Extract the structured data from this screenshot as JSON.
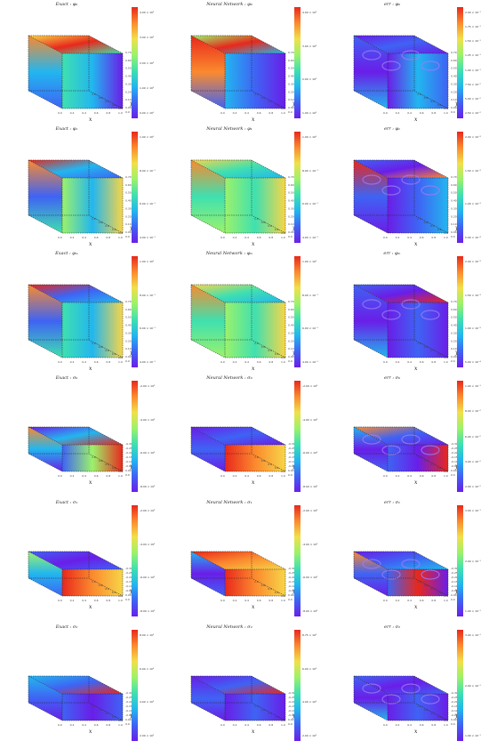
{
  "colormap": [
    "#6a1ee8",
    "#3f63f4",
    "#22b6ef",
    "#3fe0b0",
    "#9cf26b",
    "#f1e04a",
    "#fb8a2e",
    "#e8281c"
  ],
  "chart_data": [
    {
      "type": "heatmap",
      "title": "Exact : φ₀",
      "xlabel": "x",
      "ylabel": "y",
      "zlabel": "z",
      "x_ticks": [
        "0.0",
        "0.2",
        "0.4",
        "0.6",
        "0.8",
        "1.0"
      ],
      "y_ticks": [
        "0.0",
        "0.2",
        "0.4",
        "0.6",
        "0.8",
        "1.0"
      ],
      "z_ticks": [
        "0.00",
        "0.10",
        "0.20",
        "0.30",
        "0.40",
        "0.50",
        "0.60",
        "0.70"
      ],
      "colorbar_ticks": [
        "4.00 × 10²",
        "3.00 × 10²",
        "2.00 × 10²",
        "1.00 × 10²",
        "0.00 × 10⁰"
      ]
    },
    {
      "type": "heatmap",
      "title": "Neural Network : φ₀",
      "xlabel": "x",
      "ylabel": "y",
      "zlabel": "z",
      "x_ticks": [
        "0.0",
        "0.2",
        "0.4",
        "0.6",
        "0.8",
        "1.0"
      ],
      "y_ticks": [
        "0.0",
        "0.2",
        "0.4",
        "0.6",
        "0.8",
        "1.0"
      ],
      "z_ticks": [
        "0.00",
        "0.10",
        "0.20",
        "0.30",
        "0.40",
        "0.50",
        "0.60",
        "0.70"
      ],
      "colorbar_ticks": [
        "4.00 × 10²",
        "3.00 × 10²",
        "2.00 × 10²",
        "1.00 × 10²"
      ]
    },
    {
      "type": "heatmap",
      "title": "err : φ₀",
      "xlabel": "x",
      "ylabel": "y",
      "zlabel": "z",
      "x_ticks": [
        "0.0",
        "0.2",
        "0.4",
        "0.6",
        "0.8",
        "1.0"
      ],
      "y_ticks": [
        "0.0",
        "0.2",
        "0.4",
        "0.6",
        "0.8",
        "1.0"
      ],
      "z_ticks": [
        "0.00",
        "0.10",
        "0.20",
        "0.30",
        "0.40",
        "0.50",
        "0.60",
        "0.70"
      ],
      "colorbar_ticks": [
        "2.00 × 10⁻¹",
        "1.75 × 10⁻¹",
        "1.50 × 10⁻¹",
        "1.25 × 10⁻¹",
        "1.00 × 10⁻¹",
        "7.50 × 10⁻²",
        "5.00 × 10⁻²",
        "2.50 × 10⁻²"
      ]
    },
    {
      "type": "heatmap",
      "title": "Exact : φ₁",
      "xlabel": "x",
      "ylabel": "y",
      "zlabel": "z",
      "x_ticks": [
        "0.0",
        "0.2",
        "0.4",
        "0.6",
        "0.8",
        "1.0"
      ],
      "y_ticks": [
        "0.0",
        "0.2",
        "0.4",
        "0.6",
        "0.8",
        "1.0"
      ],
      "z_ticks": [
        "0.00",
        "0.10",
        "0.20",
        "0.30",
        "0.40",
        "0.50",
        "0.60",
        "0.70"
      ],
      "colorbar_ticks": [
        "1.00 × 10⁰",
        "8.00 × 10⁻¹",
        "6.00 × 10⁻¹",
        "4.00 × 10⁻¹"
      ]
    },
    {
      "type": "heatmap",
      "title": "Neural Network : φ₁",
      "xlabel": "x",
      "ylabel": "y",
      "zlabel": "z",
      "x_ticks": [
        "0.0",
        "0.2",
        "0.4",
        "0.6",
        "0.8",
        "1.0"
      ],
      "y_ticks": [
        "0.0",
        "0.2",
        "0.4",
        "0.6",
        "0.8",
        "1.0"
      ],
      "z_ticks": [
        "0.00",
        "0.10",
        "0.20",
        "0.30",
        "0.40",
        "0.50",
        "0.60",
        "0.70"
      ],
      "colorbar_ticks": [
        "1.00 × 10⁰",
        "8.00 × 10⁻¹",
        "6.00 × 10⁻¹",
        "4.00 × 10⁻¹"
      ]
    },
    {
      "type": "heatmap",
      "title": "err : φ₁",
      "xlabel": "x",
      "ylabel": "y",
      "zlabel": "z",
      "x_ticks": [
        "0.0",
        "0.2",
        "0.4",
        "0.6",
        "0.8",
        "1.0"
      ],
      "y_ticks": [
        "0.0",
        "0.2",
        "0.4",
        "0.6",
        "0.8",
        "1.0"
      ],
      "z_ticks": [
        "0.00",
        "0.10",
        "0.20",
        "0.30",
        "0.40",
        "0.50",
        "0.60",
        "0.70"
      ],
      "colorbar_ticks": [
        "2.00 × 10⁻³",
        "1.50 × 10⁻³",
        "1.00 × 10⁻³",
        "5.00 × 10⁻⁴"
      ]
    },
    {
      "type": "heatmap",
      "title": "Exact : φₘ",
      "xlabel": "x",
      "ylabel": "y",
      "zlabel": "z",
      "x_ticks": [
        "0.0",
        "0.2",
        "0.4",
        "0.6",
        "0.8",
        "1.0"
      ],
      "y_ticks": [
        "0.0",
        "0.2",
        "0.4",
        "0.6",
        "0.8",
        "1.0"
      ],
      "z_ticks": [
        "0.00",
        "0.10",
        "0.20",
        "0.30",
        "0.40",
        "0.50",
        "0.60",
        "0.70"
      ],
      "colorbar_ticks": [
        "1.00 × 10⁰",
        "8.00 × 10⁻¹",
        "6.00 × 10⁻¹",
        "4.00 × 10⁻¹"
      ]
    },
    {
      "type": "heatmap",
      "title": "Neural Network : φₘ",
      "xlabel": "x",
      "ylabel": "y",
      "zlabel": "z",
      "x_ticks": [
        "0.0",
        "0.2",
        "0.4",
        "0.6",
        "0.8",
        "1.0"
      ],
      "y_ticks": [
        "0.0",
        "0.2",
        "0.4",
        "0.6",
        "0.8",
        "1.0"
      ],
      "z_ticks": [
        "0.00",
        "0.10",
        "0.20",
        "0.30",
        "0.40",
        "0.50",
        "0.60",
        "0.70"
      ],
      "colorbar_ticks": [
        "1.00 × 10⁰",
        "8.00 × 10⁻¹",
        "6.00 × 10⁻¹",
        "4.00 × 10⁻¹"
      ]
    },
    {
      "type": "heatmap",
      "title": "err : φₘ",
      "xlabel": "x",
      "ylabel": "y",
      "zlabel": "z",
      "x_ticks": [
        "0.0",
        "0.2",
        "0.4",
        "0.6",
        "0.8",
        "1.0"
      ],
      "y_ticks": [
        "0.0",
        "0.2",
        "0.4",
        "0.6",
        "0.8",
        "1.0"
      ],
      "z_ticks": [
        "0.00",
        "0.10",
        "0.20",
        "0.30",
        "0.40",
        "0.50",
        "0.60",
        "0.70"
      ],
      "colorbar_ticks": [
        "2.00 × 10⁻³",
        "1.50 × 10⁻³",
        "1.00 × 10⁻³",
        "5.00 × 10⁻⁴"
      ]
    },
    {
      "type": "heatmap",
      "title": "Exact : σ₀",
      "xlabel": "x",
      "ylabel": "y",
      "zlabel": "z",
      "x_ticks": [
        "0.0",
        "0.2",
        "0.4",
        "0.6",
        "0.8",
        "1.0"
      ],
      "y_ticks": [
        "0.0",
        "0.2",
        "0.4",
        "0.6",
        "0.8",
        "1.0"
      ],
      "z_ticks": [
        "0.00",
        "-0.05",
        "-0.10",
        "-0.15",
        "-0.20",
        "-0.25",
        "-0.30"
      ],
      "colorbar_ticks": [
        "-2.00 × 10²",
        "-4.00 × 10²",
        "-6.00 × 10²",
        "-8.00 × 10²"
      ]
    },
    {
      "type": "heatmap",
      "title": "Neural Network : σ₀",
      "xlabel": "x",
      "ylabel": "y",
      "zlabel": "z",
      "x_ticks": [
        "0.0",
        "0.2",
        "0.4",
        "0.6",
        "0.8",
        "1.0"
      ],
      "y_ticks": [
        "0.0",
        "0.2",
        "0.4",
        "0.6",
        "0.8",
        "1.0"
      ],
      "z_ticks": [
        "0.00",
        "-0.05",
        "-0.10",
        "-0.15",
        "-0.20",
        "-0.25",
        "-0.30"
      ],
      "colorbar_ticks": [
        "-2.00 × 10²",
        "-4.00 × 10²",
        "-6.00 × 10²",
        "-8.00 × 10²"
      ]
    },
    {
      "type": "heatmap",
      "title": "err : σ₀",
      "xlabel": "x",
      "ylabel": "y",
      "zlabel": "z",
      "x_ticks": [
        "0.0",
        "0.2",
        "0.4",
        "0.6",
        "0.8",
        "1.0"
      ],
      "y_ticks": [
        "0.0",
        "0.2",
        "0.4",
        "0.6",
        "0.8",
        "1.0"
      ],
      "z_ticks": [
        "0.00",
        "-0.05",
        "-0.10",
        "-0.15",
        "-0.20",
        "-0.25",
        "-0.30"
      ],
      "colorbar_ticks": [
        "1.00 × 10⁻¹",
        "8.00 × 10⁻²",
        "6.00 × 10⁻²",
        "4.00 × 10⁻²",
        "2.00 × 10⁻²"
      ]
    },
    {
      "type": "heatmap",
      "title": "Exact : σ₁",
      "xlabel": "x",
      "ylabel": "y",
      "zlabel": "z",
      "x_ticks": [
        "0.0",
        "0.2",
        "0.4",
        "0.6",
        "0.8",
        "1.0"
      ],
      "y_ticks": [
        "0.0",
        "0.2",
        "0.4",
        "0.6",
        "0.8",
        "1.0"
      ],
      "z_ticks": [
        "0.00",
        "-0.05",
        "-0.10",
        "-0.15",
        "-0.20",
        "-0.25",
        "-0.30"
      ],
      "colorbar_ticks": [
        "-2.00 × 10²",
        "-4.00 × 10²",
        "-6.00 × 10²",
        "-8.00 × 10²"
      ]
    },
    {
      "type": "heatmap",
      "title": "Neural Network : σ₁",
      "xlabel": "x",
      "ylabel": "y",
      "zlabel": "z",
      "x_ticks": [
        "0.0",
        "0.2",
        "0.4",
        "0.6",
        "0.8",
        "1.0"
      ],
      "y_ticks": [
        "0.0",
        "0.2",
        "0.4",
        "0.6",
        "0.8",
        "1.0"
      ],
      "z_ticks": [
        "0.00",
        "-0.05",
        "-0.10",
        "-0.15",
        "-0.20",
        "-0.25",
        "-0.30"
      ],
      "colorbar_ticks": [
        "-2.00 × 10²",
        "-4.00 × 10²",
        "-6.00 × 10²",
        "-8.00 × 10²"
      ]
    },
    {
      "type": "heatmap",
      "title": "err : σ₁",
      "xlabel": "x",
      "ylabel": "y",
      "zlabel": "z",
      "x_ticks": [
        "0.0",
        "0.2",
        "0.4",
        "0.6",
        "0.8",
        "1.0"
      ],
      "y_ticks": [
        "0.0",
        "0.2",
        "0.4",
        "0.6",
        "0.8",
        "1.0"
      ],
      "z_ticks": [
        "0.00",
        "-0.05",
        "-0.10",
        "-0.15",
        "-0.20",
        "-0.25",
        "-0.30"
      ],
      "colorbar_ticks": [
        "3.00 × 10⁻¹",
        "2.00 × 10⁻¹",
        "1.00 × 10⁻¹"
      ]
    },
    {
      "type": "heatmap",
      "title": "Exact : σ₂",
      "xlabel": "x",
      "ylabel": "y",
      "zlabel": "z",
      "x_ticks": [
        "0.0",
        "0.2",
        "0.4",
        "0.6",
        "0.8",
        "1.0"
      ],
      "y_ticks": [
        "0.0",
        "0.2",
        "0.4",
        "0.6",
        "0.8",
        "1.0"
      ],
      "z_ticks": [
        "0.00",
        "-0.05",
        "-0.10",
        "-0.15",
        "-0.20",
        "-0.25",
        "-0.30"
      ],
      "colorbar_ticks": [
        "8.00 × 10²",
        "6.00 × 10²",
        "4.00 × 10²",
        "2.00 × 10²"
      ]
    },
    {
      "type": "heatmap",
      "title": "Neural Network : σ₂",
      "xlabel": "x",
      "ylabel": "y",
      "zlabel": "z",
      "x_ticks": [
        "0.0",
        "0.2",
        "0.4",
        "0.6",
        "0.8",
        "1.0"
      ],
      "y_ticks": [
        "0.0",
        "0.2",
        "0.4",
        "0.6",
        "0.8",
        "1.0"
      ],
      "z_ticks": [
        "0.00",
        "-0.05",
        "-0.10",
        "-0.15",
        "-0.20",
        "-0.25",
        "-0.30"
      ],
      "colorbar_ticks": [
        "8.75 × 10²",
        "6.00 × 10²",
        "4.00 × 10²",
        "2.00 × 10²"
      ]
    },
    {
      "type": "heatmap",
      "title": "err : σ₂",
      "xlabel": "x",
      "ylabel": "y",
      "zlabel": "z",
      "x_ticks": [
        "0.0",
        "0.2",
        "0.4",
        "0.6",
        "0.8",
        "1.0"
      ],
      "y_ticks": [
        "0.0",
        "0.2",
        "0.4",
        "0.6",
        "0.8",
        "1.0"
      ],
      "z_ticks": [
        "0.00",
        "-0.05",
        "-0.10",
        "-0.15",
        "-0.20",
        "-0.25",
        "-0.30"
      ],
      "colorbar_ticks": [
        "3.00 × 10⁻¹",
        "2.00 × 10⁻¹",
        "1.00 × 10⁻¹"
      ]
    }
  ]
}
